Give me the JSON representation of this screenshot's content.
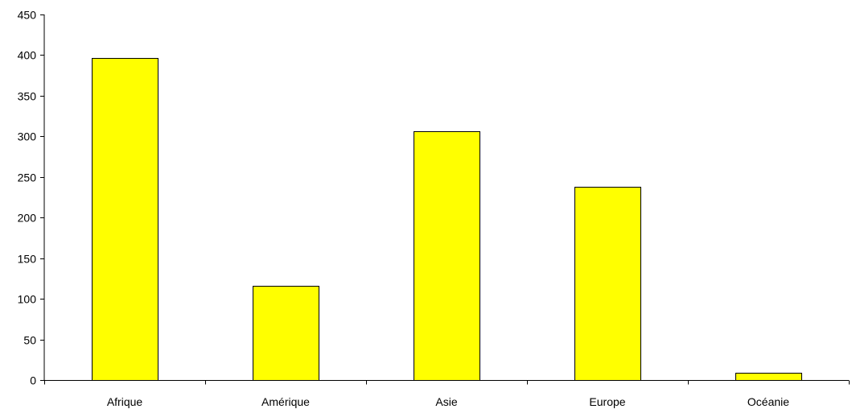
{
  "chart_data": {
    "type": "bar",
    "categories": [
      "Afrique",
      "Amérique",
      "Asie",
      "Europe",
      "Océanie"
    ],
    "values": [
      396,
      116,
      306,
      238,
      9
    ],
    "title": "",
    "xlabel": "",
    "ylabel": "",
    "ylim": [
      0,
      450
    ],
    "yticks": [
      0,
      50,
      100,
      150,
      200,
      250,
      300,
      350,
      400,
      450
    ],
    "grid": false,
    "legend": "none",
    "bar_color": "#FFFF00",
    "bar_border_color": "#000000"
  }
}
